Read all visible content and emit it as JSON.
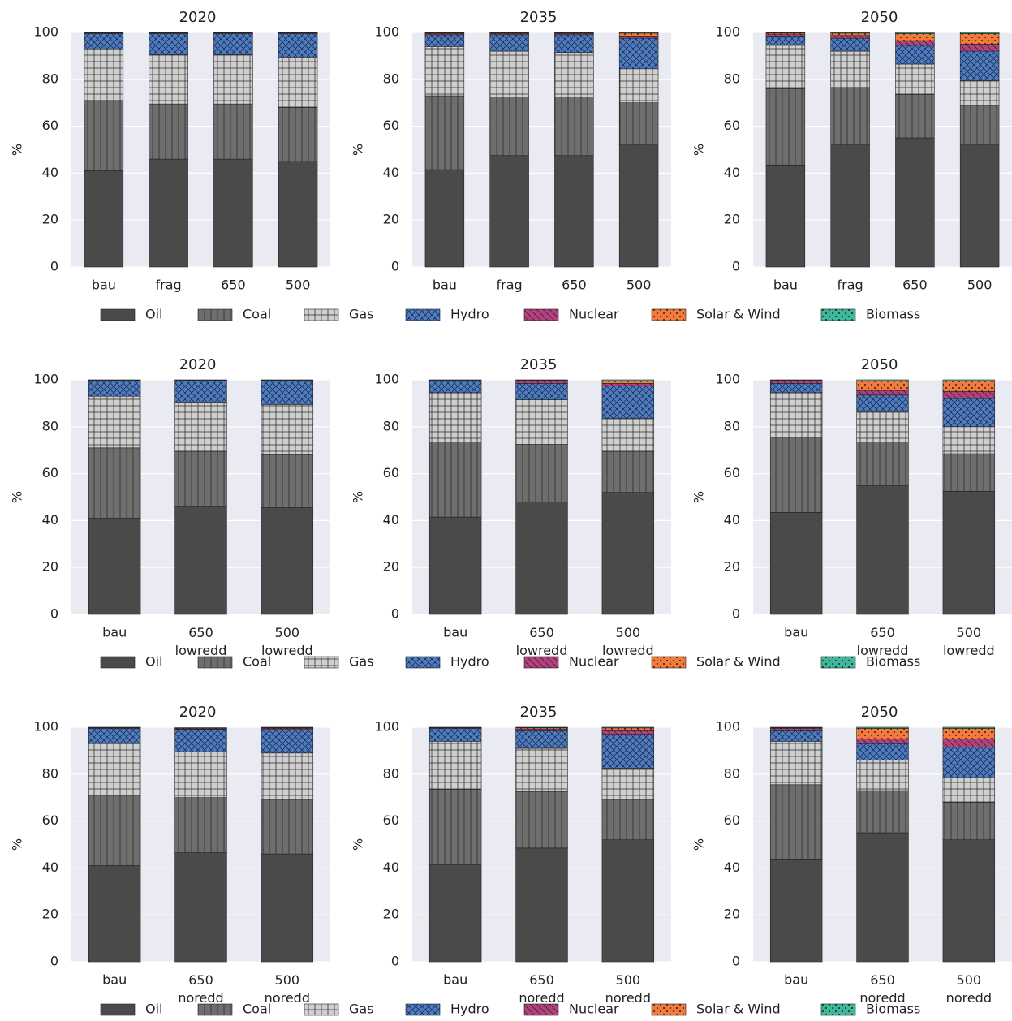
{
  "chart_data": [
    {
      "type": "bar",
      "stacked": true,
      "title": "2020",
      "ylabel": "%",
      "ylim": [
        0,
        100
      ],
      "yticks": [
        0,
        20,
        40,
        60,
        80,
        100
      ],
      "grid": true,
      "categories": [
        "bau",
        "frag",
        "650",
        "500"
      ],
      "series": [
        {
          "name": "Oil",
          "color": "#4a4a4a",
          "values": [
            41,
            46,
            46,
            45
          ]
        },
        {
          "name": "Coal",
          "color": "#6e6e6e",
          "values": [
            30,
            23.5,
            23.5,
            23
          ]
        },
        {
          "name": "Gas",
          "color": "#cfcfcf",
          "values": [
            22,
            21,
            21,
            21.5
          ]
        },
        {
          "name": "Hydro",
          "color": "#4a7cc9",
          "values": [
            6.5,
            9,
            9,
            10
          ]
        },
        {
          "name": "Nuclear",
          "color": "#b5407e",
          "values": [
            0.3,
            0.3,
            0.3,
            0.3
          ]
        },
        {
          "name": "Solar & Wind",
          "color": "#f47a3a",
          "values": [
            0.1,
            0.1,
            0.1,
            0.1
          ]
        },
        {
          "name": "Biomass",
          "color": "#3cb89a",
          "values": [
            0.1,
            0.1,
            0.1,
            0.1
          ]
        }
      ]
    },
    {
      "type": "bar",
      "stacked": true,
      "title": "2035",
      "ylabel": "%",
      "ylim": [
        0,
        100
      ],
      "yticks": [
        0,
        20,
        40,
        60,
        80,
        100
      ],
      "grid": true,
      "categories": [
        "bau",
        "frag",
        "650",
        "500"
      ],
      "series": [
        {
          "color": "#4a4a4a",
          "values": [
            41.5,
            47.5,
            47.5,
            52
          ]
        },
        {
          "color": "#6e6e6e",
          "values": [
            31.5,
            25,
            25,
            18
          ]
        },
        {
          "color": "#cfcfcf",
          "values": [
            21,
            19.5,
            19,
            14.5
          ]
        },
        {
          "color": "#4a7cc9",
          "values": [
            5,
            7,
            7.5,
            13
          ]
        },
        {
          "color": "#b5407e",
          "values": [
            0.5,
            0.5,
            0.5,
            1
          ]
        },
        {
          "color": "#f47a3a",
          "values": [
            0.3,
            0.3,
            0.3,
            1.2
          ]
        },
        {
          "color": "#3cb89a",
          "values": [
            0.2,
            0.2,
            0.2,
            0.3
          ]
        }
      ]
    },
    {
      "type": "bar",
      "stacked": true,
      "title": "2050",
      "ylabel": "%",
      "ylim": [
        0,
        100
      ],
      "yticks": [
        0,
        20,
        40,
        60,
        80,
        100
      ],
      "grid": true,
      "categories": [
        "bau",
        "frag",
        "650",
        "500"
      ],
      "series": [
        {
          "color": "#4a4a4a",
          "values": [
            43.5,
            52,
            55,
            52
          ]
        },
        {
          "color": "#6e6e6e",
          "values": [
            32.5,
            24.5,
            18.5,
            17
          ]
        },
        {
          "color": "#cfcfcf",
          "values": [
            18.5,
            15.5,
            13,
            10.5
          ]
        },
        {
          "color": "#4a7cc9",
          "values": [
            4,
            5.5,
            8,
            12.5
          ]
        },
        {
          "color": "#b5407e",
          "values": [
            0.8,
            1.2,
            2,
            3
          ]
        },
        {
          "color": "#f47a3a",
          "values": [
            0.5,
            1,
            3,
            4.5
          ]
        },
        {
          "color": "#3cb89a",
          "values": [
            0.2,
            0.3,
            0.5,
            0.5
          ]
        }
      ]
    },
    {
      "type": "bar",
      "stacked": true,
      "title": "2020",
      "ylabel": "%",
      "ylim": [
        0,
        100
      ],
      "yticks": [
        0,
        20,
        40,
        60,
        80,
        100
      ],
      "grid": true,
      "categories": [
        "bau",
        "650 lowredd",
        "500 lowredd"
      ],
      "series": [
        {
          "name": "Oil",
          "color": "#4a4a4a",
          "values": [
            41,
            46,
            45.5
          ]
        },
        {
          "name": "Coal",
          "color": "#6e6e6e",
          "values": [
            30,
            23.5,
            22.5
          ]
        },
        {
          "name": "Gas",
          "color": "#cfcfcf",
          "values": [
            22,
            21,
            21.5
          ]
        },
        {
          "name": "Hydro",
          "color": "#4a7cc9",
          "values": [
            6.5,
            9,
            10
          ]
        },
        {
          "name": "Nuclear",
          "color": "#b5407e",
          "values": [
            0.3,
            0.3,
            0.3
          ]
        },
        {
          "name": "Solar & Wind",
          "color": "#f47a3a",
          "values": [
            0.1,
            0.1,
            0.1
          ]
        },
        {
          "name": "Biomass",
          "color": "#3cb89a",
          "values": [
            0.1,
            0.1,
            0.1
          ]
        }
      ]
    },
    {
      "type": "bar",
      "stacked": true,
      "title": "2035",
      "ylabel": "%",
      "ylim": [
        0,
        100
      ],
      "yticks": [
        0,
        20,
        40,
        60,
        80,
        100
      ],
      "grid": true,
      "categories": [
        "bau",
        "650 lowredd",
        "500 lowredd"
      ],
      "series": [
        {
          "color": "#4a4a4a",
          "values": [
            41.5,
            48,
            52
          ]
        },
        {
          "color": "#6e6e6e",
          "values": [
            32,
            24.5,
            17.5
          ]
        },
        {
          "color": "#cfcfcf",
          "values": [
            21,
            19,
            14
          ]
        },
        {
          "color": "#4a7cc9",
          "values": [
            5,
            7,
            14
          ]
        },
        {
          "color": "#b5407e",
          "values": [
            0.3,
            1,
            1
          ]
        },
        {
          "color": "#f47a3a",
          "values": [
            0.1,
            0.3,
            1
          ]
        },
        {
          "color": "#3cb89a",
          "values": [
            0.1,
            0.2,
            0.5
          ]
        }
      ]
    },
    {
      "type": "bar",
      "stacked": true,
      "title": "2050",
      "ylabel": "%",
      "ylim": [
        0,
        100
      ],
      "yticks": [
        0,
        20,
        40,
        60,
        80,
        100
      ],
      "grid": true,
      "categories": [
        "bau",
        "650 lowredd",
        "500 lowredd"
      ],
      "series": [
        {
          "color": "#4a4a4a",
          "values": [
            43.5,
            55,
            52.5
          ]
        },
        {
          "color": "#6e6e6e",
          "values": [
            32,
            18.5,
            16
          ]
        },
        {
          "color": "#cfcfcf",
          "values": [
            19,
            13,
            11.5
          ]
        },
        {
          "color": "#4a7cc9",
          "values": [
            4,
            7,
            12
          ]
        },
        {
          "color": "#b5407e",
          "values": [
            1,
            2,
            3
          ]
        },
        {
          "color": "#f47a3a",
          "values": [
            0.3,
            4,
            4.5
          ]
        },
        {
          "color": "#3cb89a",
          "values": [
            0.2,
            0.5,
            0.5
          ]
        }
      ]
    },
    {
      "type": "bar",
      "stacked": true,
      "title": "2020",
      "ylabel": "%",
      "ylim": [
        0,
        100
      ],
      "yticks": [
        0,
        20,
        40,
        60,
        80,
        100
      ],
      "grid": true,
      "categories": [
        "bau",
        "650 noredd",
        "500 noredd"
      ],
      "series": [
        {
          "name": "Oil",
          "color": "#4a4a4a",
          "values": [
            41,
            46.5,
            46
          ]
        },
        {
          "name": "Coal",
          "color": "#6e6e6e",
          "values": [
            30,
            23.5,
            23
          ]
        },
        {
          "name": "Gas",
          "color": "#cfcfcf",
          "values": [
            22,
            19.5,
            20
          ]
        },
        {
          "name": "Hydro",
          "color": "#4a7cc9",
          "values": [
            6.5,
            9.5,
            10
          ]
        },
        {
          "name": "Nuclear",
          "color": "#b5407e",
          "values": [
            0.3,
            0.3,
            0.5
          ]
        },
        {
          "name": "Solar & Wind",
          "color": "#f47a3a",
          "values": [
            0.1,
            0.3,
            0.3
          ]
        },
        {
          "name": "Biomass",
          "color": "#3cb89a",
          "values": [
            0.1,
            0.2,
            0.2
          ]
        }
      ]
    },
    {
      "type": "bar",
      "stacked": true,
      "title": "2035",
      "ylabel": "%",
      "ylim": [
        0,
        100
      ],
      "yticks": [
        0,
        20,
        40,
        60,
        80,
        100
      ],
      "grid": true,
      "categories": [
        "bau",
        "650 noredd",
        "500 noredd"
      ],
      "series": [
        {
          "color": "#4a4a4a",
          "values": [
            41.5,
            48.5,
            52
          ]
        },
        {
          "color": "#6e6e6e",
          "values": [
            32,
            24,
            17
          ]
        },
        {
          "color": "#cfcfcf",
          "values": [
            20.5,
            18.5,
            13.5
          ]
        },
        {
          "color": "#4a7cc9",
          "values": [
            5.5,
            7.5,
            14.5
          ]
        },
        {
          "color": "#b5407e",
          "values": [
            0.3,
            0.8,
            1.5
          ]
        },
        {
          "color": "#f47a3a",
          "values": [
            0.1,
            0.5,
            1.2
          ]
        },
        {
          "color": "#3cb89a",
          "values": [
            0.1,
            0.2,
            0.3
          ]
        }
      ]
    },
    {
      "type": "bar",
      "stacked": true,
      "title": "2050",
      "ylabel": "%",
      "ylim": [
        0,
        100
      ],
      "yticks": [
        0,
        20,
        40,
        60,
        80,
        100
      ],
      "grid": true,
      "categories": [
        "bau",
        "650 noredd",
        "500 noredd"
      ],
      "series": [
        {
          "color": "#4a4a4a",
          "values": [
            43.5,
            55,
            52
          ]
        },
        {
          "color": "#6e6e6e",
          "values": [
            32,
            18,
            16
          ]
        },
        {
          "color": "#cfcfcf",
          "values": [
            18.5,
            13,
            10.5
          ]
        },
        {
          "color": "#4a7cc9",
          "values": [
            4.5,
            7,
            13
          ]
        },
        {
          "color": "#b5407e",
          "values": [
            1,
            2,
            3.5
          ]
        },
        {
          "color": "#f47a3a",
          "values": [
            0.3,
            4.5,
            4.5
          ]
        },
        {
          "color": "#3cb89a",
          "values": [
            0.2,
            0.5,
            0.5
          ]
        }
      ]
    }
  ]
}
